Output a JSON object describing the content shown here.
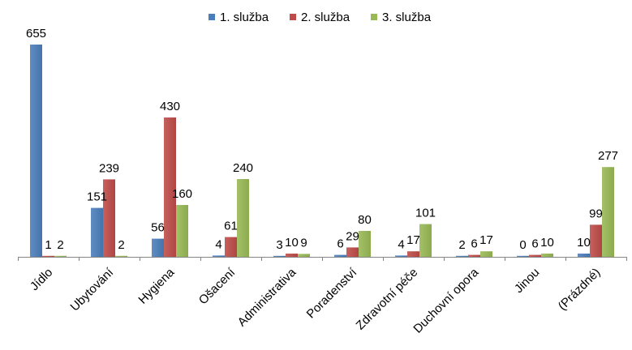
{
  "chart_data": {
    "type": "bar",
    "title": "",
    "xlabel": "",
    "ylabel": "",
    "ylim": [
      0,
      700
    ],
    "grid": false,
    "legend_position": "top",
    "categories": [
      "Jídlo",
      "Ubytování",
      "Hygiena",
      "Ošacení",
      "Administrativa",
      "Poradenství",
      "Zdravotní péče",
      "Duchovní opora",
      "Jinou",
      "(Prázdné)"
    ],
    "series": [
      {
        "name": "1. služba",
        "color": "#4a7ebb",
        "values": [
          655,
          151,
          56,
          4,
          3,
          6,
          4,
          2,
          0,
          10
        ]
      },
      {
        "name": "2. služba",
        "color": "#be4b48",
        "values": [
          1,
          239,
          430,
          61,
          10,
          29,
          17,
          6,
          6,
          99
        ]
      },
      {
        "name": "3. služba",
        "color": "#98b954",
        "values": [
          2,
          2,
          160,
          240,
          9,
          80,
          101,
          17,
          10,
          277
        ]
      }
    ]
  }
}
